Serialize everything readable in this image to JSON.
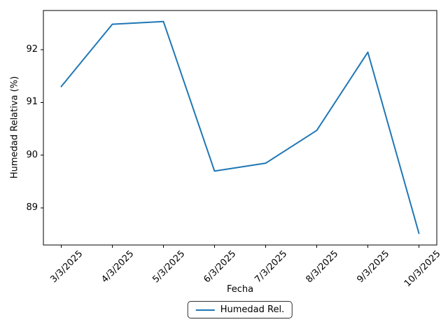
{
  "figure": {
    "background": "#ffffff",
    "accent_color": "#1f77b4",
    "text_color": "#000000"
  },
  "chart_data": {
    "type": "line",
    "title": "",
    "xlabel": "Fecha",
    "ylabel": "Humedad Relativa (%)",
    "categories": [
      "3/3/2025",
      "4/3/2025",
      "5/3/2025",
      "6/3/2025",
      "7/3/2025",
      "8/3/2025",
      "9/3/2025",
      "10/3/2025"
    ],
    "series": [
      {
        "name": "Humedad Rel.",
        "color": "#1f77b4",
        "values": [
          91.3,
          92.48,
          92.53,
          89.7,
          89.85,
          90.47,
          91.95,
          88.52
        ]
      }
    ],
    "yticks": [
      89,
      90,
      91,
      92
    ],
    "ylim": [
      88.3,
      92.74
    ],
    "x_margin": 0.35,
    "grid": false,
    "legend_position": "lower center, below x-axis label",
    "tick_label_rotation": 45
  }
}
